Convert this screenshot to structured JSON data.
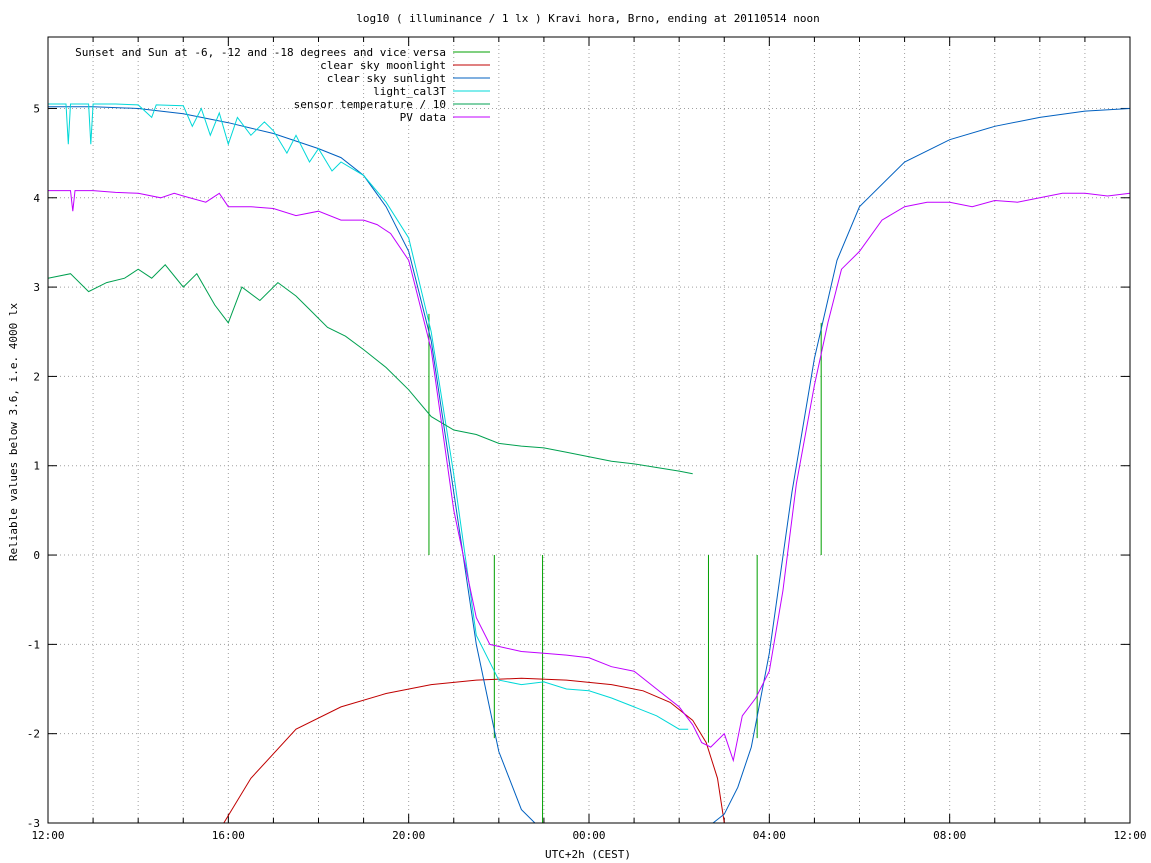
{
  "chart_data": {
    "type": "line",
    "title": "log10 ( illuminance / 1 lx ) Kravi hora, Brno, ending at 20110514 noon",
    "xlabel": "UTC+2h (CEST)",
    "ylabel": "Reliable values below 3.6, i.e. 4000 lx",
    "xlim": [
      0,
      24
    ],
    "ylim": [
      -3,
      5.8
    ],
    "grid": true,
    "legend_position": "top-left",
    "x_ticks": [
      {
        "x": 0,
        "label": "12:00"
      },
      {
        "x": 4,
        "label": "16:00"
      },
      {
        "x": 8,
        "label": "20:00"
      },
      {
        "x": 12,
        "label": "00:00"
      },
      {
        "x": 16,
        "label": "04:00"
      },
      {
        "x": 20,
        "label": "08:00"
      },
      {
        "x": 24,
        "label": "12:00"
      }
    ],
    "y_ticks": [
      -3,
      -2,
      -1,
      0,
      1,
      2,
      3,
      4,
      5
    ],
    "series": [
      {
        "name": "Sunset and Sun at -6, -12 and -18 degrees and vice versa",
        "color": "#00a000",
        "kind": "impulses",
        "points": [
          [
            8.45,
            2.7
          ],
          [
            9.15,
            0
          ],
          [
            9.9,
            -2.05
          ],
          [
            10.97,
            -3
          ],
          [
            14.65,
            -2.1
          ],
          [
            15.73,
            -2.05
          ],
          [
            16.45,
            0
          ],
          [
            17.15,
            2.6
          ]
        ]
      },
      {
        "name": "clear sky moonlight",
        "color": "#c00000",
        "points": [
          [
            3.9,
            -3
          ],
          [
            4.5,
            -2.5
          ],
          [
            5.5,
            -1.95
          ],
          [
            6.5,
            -1.7
          ],
          [
            7.5,
            -1.55
          ],
          [
            8.5,
            -1.45
          ],
          [
            9.5,
            -1.4
          ],
          [
            10.5,
            -1.38
          ],
          [
            11.5,
            -1.4
          ],
          [
            12.5,
            -1.45
          ],
          [
            13.2,
            -1.52
          ],
          [
            13.8,
            -1.65
          ],
          [
            14.3,
            -1.85
          ],
          [
            14.6,
            -2.1
          ],
          [
            14.85,
            -2.5
          ],
          [
            15.0,
            -3
          ]
        ]
      },
      {
        "name": "clear sky sunlight",
        "color": "#0060c0",
        "points": [
          [
            0,
            5.02
          ],
          [
            1,
            5.02
          ],
          [
            2,
            5.0
          ],
          [
            3,
            4.94
          ],
          [
            4,
            4.84
          ],
          [
            5,
            4.72
          ],
          [
            6,
            4.55
          ],
          [
            6.5,
            4.45
          ],
          [
            7,
            4.25
          ],
          [
            7.5,
            3.9
          ],
          [
            8,
            3.4
          ],
          [
            8.5,
            2.4
          ],
          [
            9,
            0.7
          ],
          [
            9.5,
            -1.0
          ],
          [
            10,
            -2.2
          ],
          [
            10.5,
            -2.85
          ],
          [
            10.8,
            -3.0
          ],
          [
            14.75,
            -3.0
          ],
          [
            15.0,
            -2.9
          ],
          [
            15.3,
            -2.6
          ],
          [
            15.6,
            -2.15
          ],
          [
            16,
            -1.1
          ],
          [
            16.5,
            0.7
          ],
          [
            17,
            2.2
          ],
          [
            17.5,
            3.3
          ],
          [
            18,
            3.9
          ],
          [
            19,
            4.4
          ],
          [
            20,
            4.65
          ],
          [
            21,
            4.8
          ],
          [
            22,
            4.9
          ],
          [
            23,
            4.97
          ],
          [
            24,
            5.0
          ]
        ]
      },
      {
        "name": "light_cal3T",
        "color": "#00d8d8",
        "points": [
          [
            0,
            5.05
          ],
          [
            0.4,
            5.05
          ],
          [
            0.45,
            4.6
          ],
          [
            0.5,
            5.05
          ],
          [
            0.9,
            5.05
          ],
          [
            0.95,
            4.6
          ],
          [
            1.0,
            5.05
          ],
          [
            1.5,
            5.05
          ],
          [
            2,
            5.04
          ],
          [
            2.3,
            4.9
          ],
          [
            2.4,
            5.04
          ],
          [
            3,
            5.03
          ],
          [
            3.2,
            4.8
          ],
          [
            3.4,
            5.0
          ],
          [
            3.6,
            4.7
          ],
          [
            3.8,
            4.95
          ],
          [
            4.0,
            4.6
          ],
          [
            4.2,
            4.9
          ],
          [
            4.5,
            4.7
          ],
          [
            4.8,
            4.85
          ],
          [
            5,
            4.75
          ],
          [
            5.3,
            4.5
          ],
          [
            5.5,
            4.7
          ],
          [
            5.8,
            4.4
          ],
          [
            6.0,
            4.55
          ],
          [
            6.3,
            4.3
          ],
          [
            6.5,
            4.4
          ],
          [
            7,
            4.25
          ],
          [
            7.5,
            3.95
          ],
          [
            8,
            3.55
          ],
          [
            8.5,
            2.5
          ],
          [
            9,
            0.9
          ],
          [
            9.5,
            -0.9
          ],
          [
            10,
            -1.4
          ],
          [
            10.5,
            -1.45
          ],
          [
            11,
            -1.42
          ],
          [
            11.5,
            -1.5
          ],
          [
            12,
            -1.52
          ],
          [
            12.5,
            -1.6
          ],
          [
            13,
            -1.7
          ],
          [
            13.5,
            -1.8
          ],
          [
            14.0,
            -1.95
          ],
          [
            14.2,
            -1.95
          ]
        ]
      },
      {
        "name": "sensor temperature / 10",
        "color": "#00a050",
        "points": [
          [
            0,
            3.1
          ],
          [
            0.5,
            3.15
          ],
          [
            0.9,
            2.95
          ],
          [
            1.3,
            3.05
          ],
          [
            1.7,
            3.1
          ],
          [
            2.0,
            3.2
          ],
          [
            2.3,
            3.1
          ],
          [
            2.6,
            3.25
          ],
          [
            3.0,
            3.0
          ],
          [
            3.3,
            3.15
          ],
          [
            3.7,
            2.8
          ],
          [
            4.0,
            2.6
          ],
          [
            4.3,
            3.0
          ],
          [
            4.7,
            2.85
          ],
          [
            5.1,
            3.05
          ],
          [
            5.5,
            2.9
          ],
          [
            5.8,
            2.75
          ],
          [
            6.2,
            2.55
          ],
          [
            6.6,
            2.45
          ],
          [
            7.0,
            2.3
          ],
          [
            7.5,
            2.1
          ],
          [
            8.0,
            1.85
          ],
          [
            8.5,
            1.55
          ],
          [
            9.0,
            1.4
          ],
          [
            9.5,
            1.35
          ],
          [
            10,
            1.25
          ],
          [
            10.5,
            1.22
          ],
          [
            11,
            1.2
          ],
          [
            11.5,
            1.15
          ],
          [
            12,
            1.1
          ],
          [
            12.5,
            1.05
          ],
          [
            13,
            1.02
          ],
          [
            13.5,
            0.98
          ],
          [
            14,
            0.94
          ],
          [
            14.3,
            0.91
          ]
        ]
      },
      {
        "name": "PV data",
        "color": "#c000ff",
        "points": [
          [
            0,
            4.08
          ],
          [
            0.5,
            4.08
          ],
          [
            0.55,
            3.85
          ],
          [
            0.6,
            4.08
          ],
          [
            1,
            4.08
          ],
          [
            1.5,
            4.06
          ],
          [
            2,
            4.05
          ],
          [
            2.5,
            4.0
          ],
          [
            2.8,
            4.05
          ],
          [
            3,
            4.02
          ],
          [
            3.5,
            3.95
          ],
          [
            3.8,
            4.05
          ],
          [
            4,
            3.9
          ],
          [
            4.5,
            3.9
          ],
          [
            5,
            3.88
          ],
          [
            5.5,
            3.8
          ],
          [
            6,
            3.85
          ],
          [
            6.5,
            3.75
          ],
          [
            7,
            3.75
          ],
          [
            7.3,
            3.7
          ],
          [
            7.6,
            3.6
          ],
          [
            8,
            3.3
          ],
          [
            8.5,
            2.3
          ],
          [
            9,
            0.5
          ],
          [
            9.5,
            -0.7
          ],
          [
            9.8,
            -1.0
          ],
          [
            10.5,
            -1.08
          ],
          [
            11,
            -1.1
          ],
          [
            11.5,
            -1.12
          ],
          [
            12,
            -1.15
          ],
          [
            12.5,
            -1.25
          ],
          [
            13,
            -1.3
          ],
          [
            13.5,
            -1.5
          ],
          [
            14,
            -1.7
          ],
          [
            14.3,
            -1.9
          ],
          [
            14.5,
            -2.1
          ],
          [
            14.7,
            -2.15
          ],
          [
            15.0,
            -2.0
          ],
          [
            15.2,
            -2.3
          ],
          [
            15.4,
            -1.8
          ],
          [
            15.7,
            -1.6
          ],
          [
            16,
            -1.3
          ],
          [
            16.3,
            -0.4
          ],
          [
            16.6,
            0.8
          ],
          [
            17.0,
            1.9
          ],
          [
            17.3,
            2.6
          ],
          [
            17.6,
            3.2
          ],
          [
            18,
            3.4
          ],
          [
            18.5,
            3.75
          ],
          [
            19,
            3.9
          ],
          [
            19.5,
            3.95
          ],
          [
            20,
            3.95
          ],
          [
            20.5,
            3.9
          ],
          [
            21,
            3.97
          ],
          [
            21.5,
            3.95
          ],
          [
            22,
            4.0
          ],
          [
            22.5,
            4.05
          ],
          [
            23,
            4.05
          ],
          [
            23.5,
            4.02
          ],
          [
            24,
            4.05
          ]
        ]
      }
    ]
  }
}
